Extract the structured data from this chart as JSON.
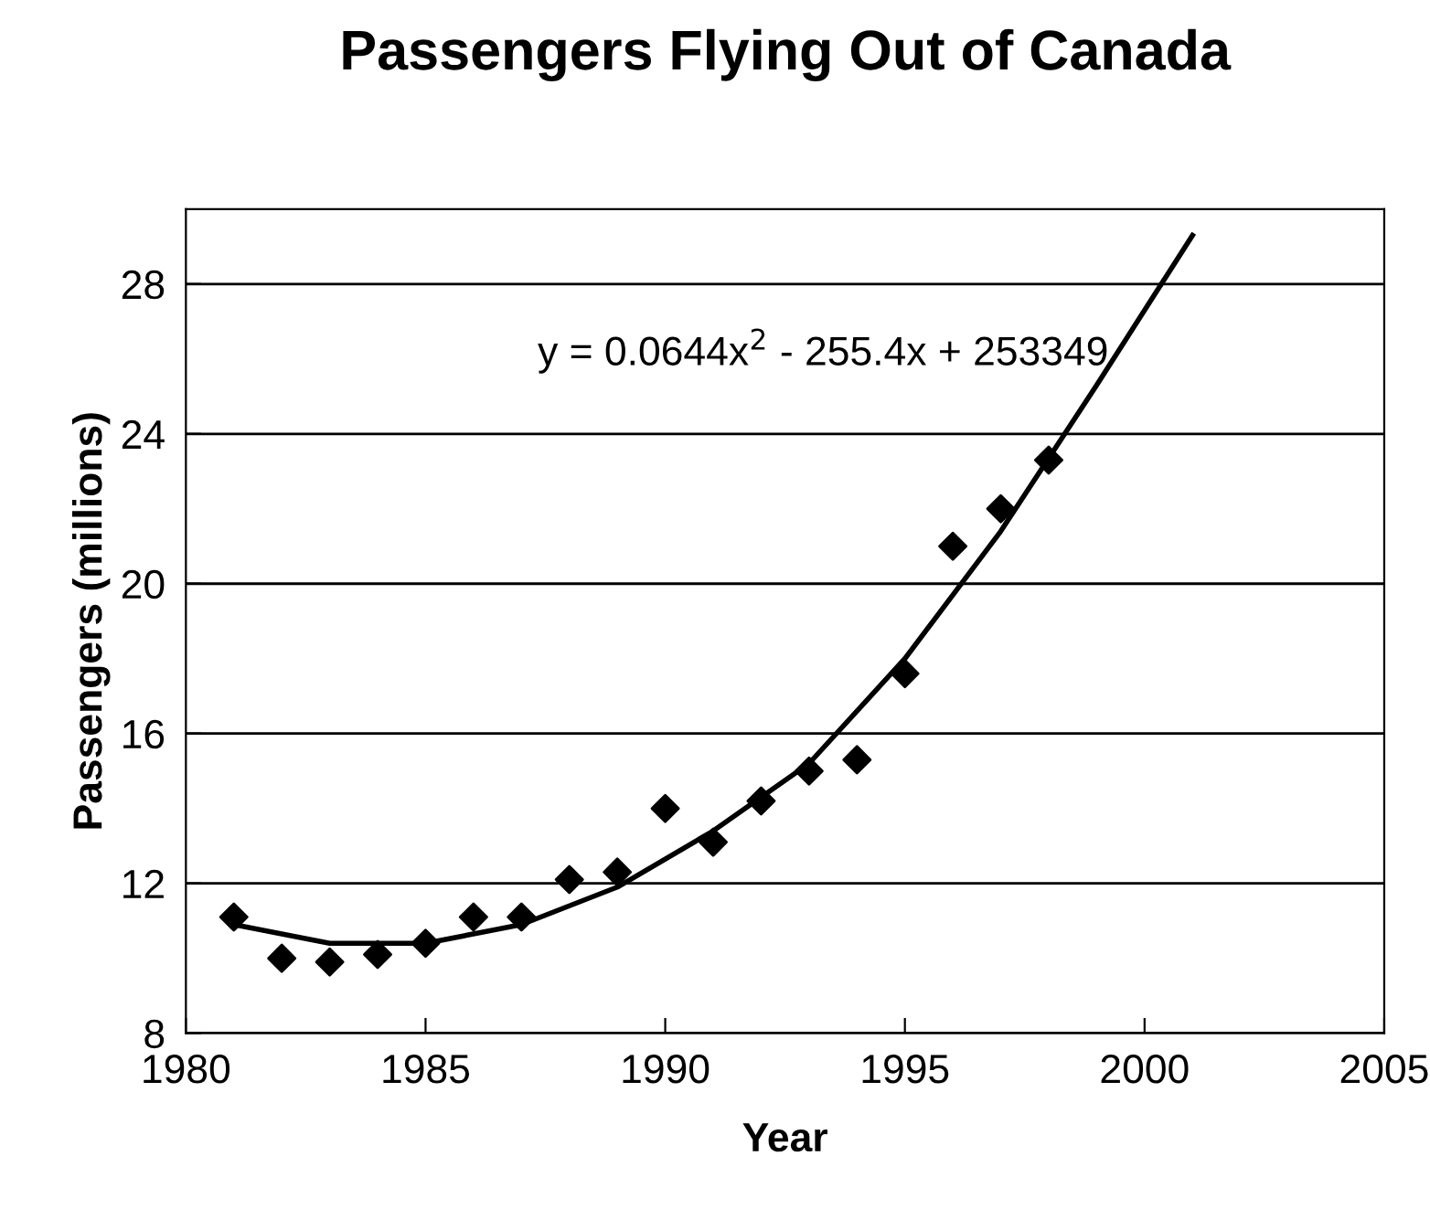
{
  "chart_data": {
    "type": "scatter",
    "title": "Passengers Flying Out of Canada",
    "xlabel": "Year",
    "ylabel": "Passengers (millions)",
    "x": [
      1981,
      1982,
      1983,
      1984,
      1985,
      1986,
      1987,
      1988,
      1989,
      1990,
      1991,
      1992,
      1993,
      1994,
      1995,
      1996,
      1997,
      1998
    ],
    "series": [
      {
        "color": "#000000",
        "marker": "diamond",
        "values": [
          11.1,
          10.0,
          9.9,
          10.1,
          10.4,
          11.1,
          11.1,
          12.1,
          12.3,
          14.0,
          13.1,
          14.2,
          15.0,
          15.3,
          17.6,
          21.0,
          22.0,
          23.3
        ]
      },
      {
        "type": "line",
        "color": "#000000",
        "marker": "none",
        "x": [
          1981,
          1983,
          1985,
          1987,
          1989,
          1991,
          1993,
          1995,
          1997,
          1999,
          2001
        ],
        "values": [
          10.9,
          10.4,
          10.4,
          10.9,
          11.9,
          13.4,
          15.2,
          18.0,
          21.4,
          25.3,
          29.3
        ]
      }
    ],
    "annotations": [
      "y = 0.0644x$^{2}$ - 255.4x + 253349"
    ],
    "xlim": [
      1980,
      2005
    ],
    "xticks": [
      1980,
      1985,
      1990,
      1995,
      2000,
      2005
    ],
    "ylim": [
      8,
      30
    ],
    "yticks": [
      8,
      12,
      16,
      20,
      24,
      28
    ],
    "grid": "y",
    "legend": false
  }
}
